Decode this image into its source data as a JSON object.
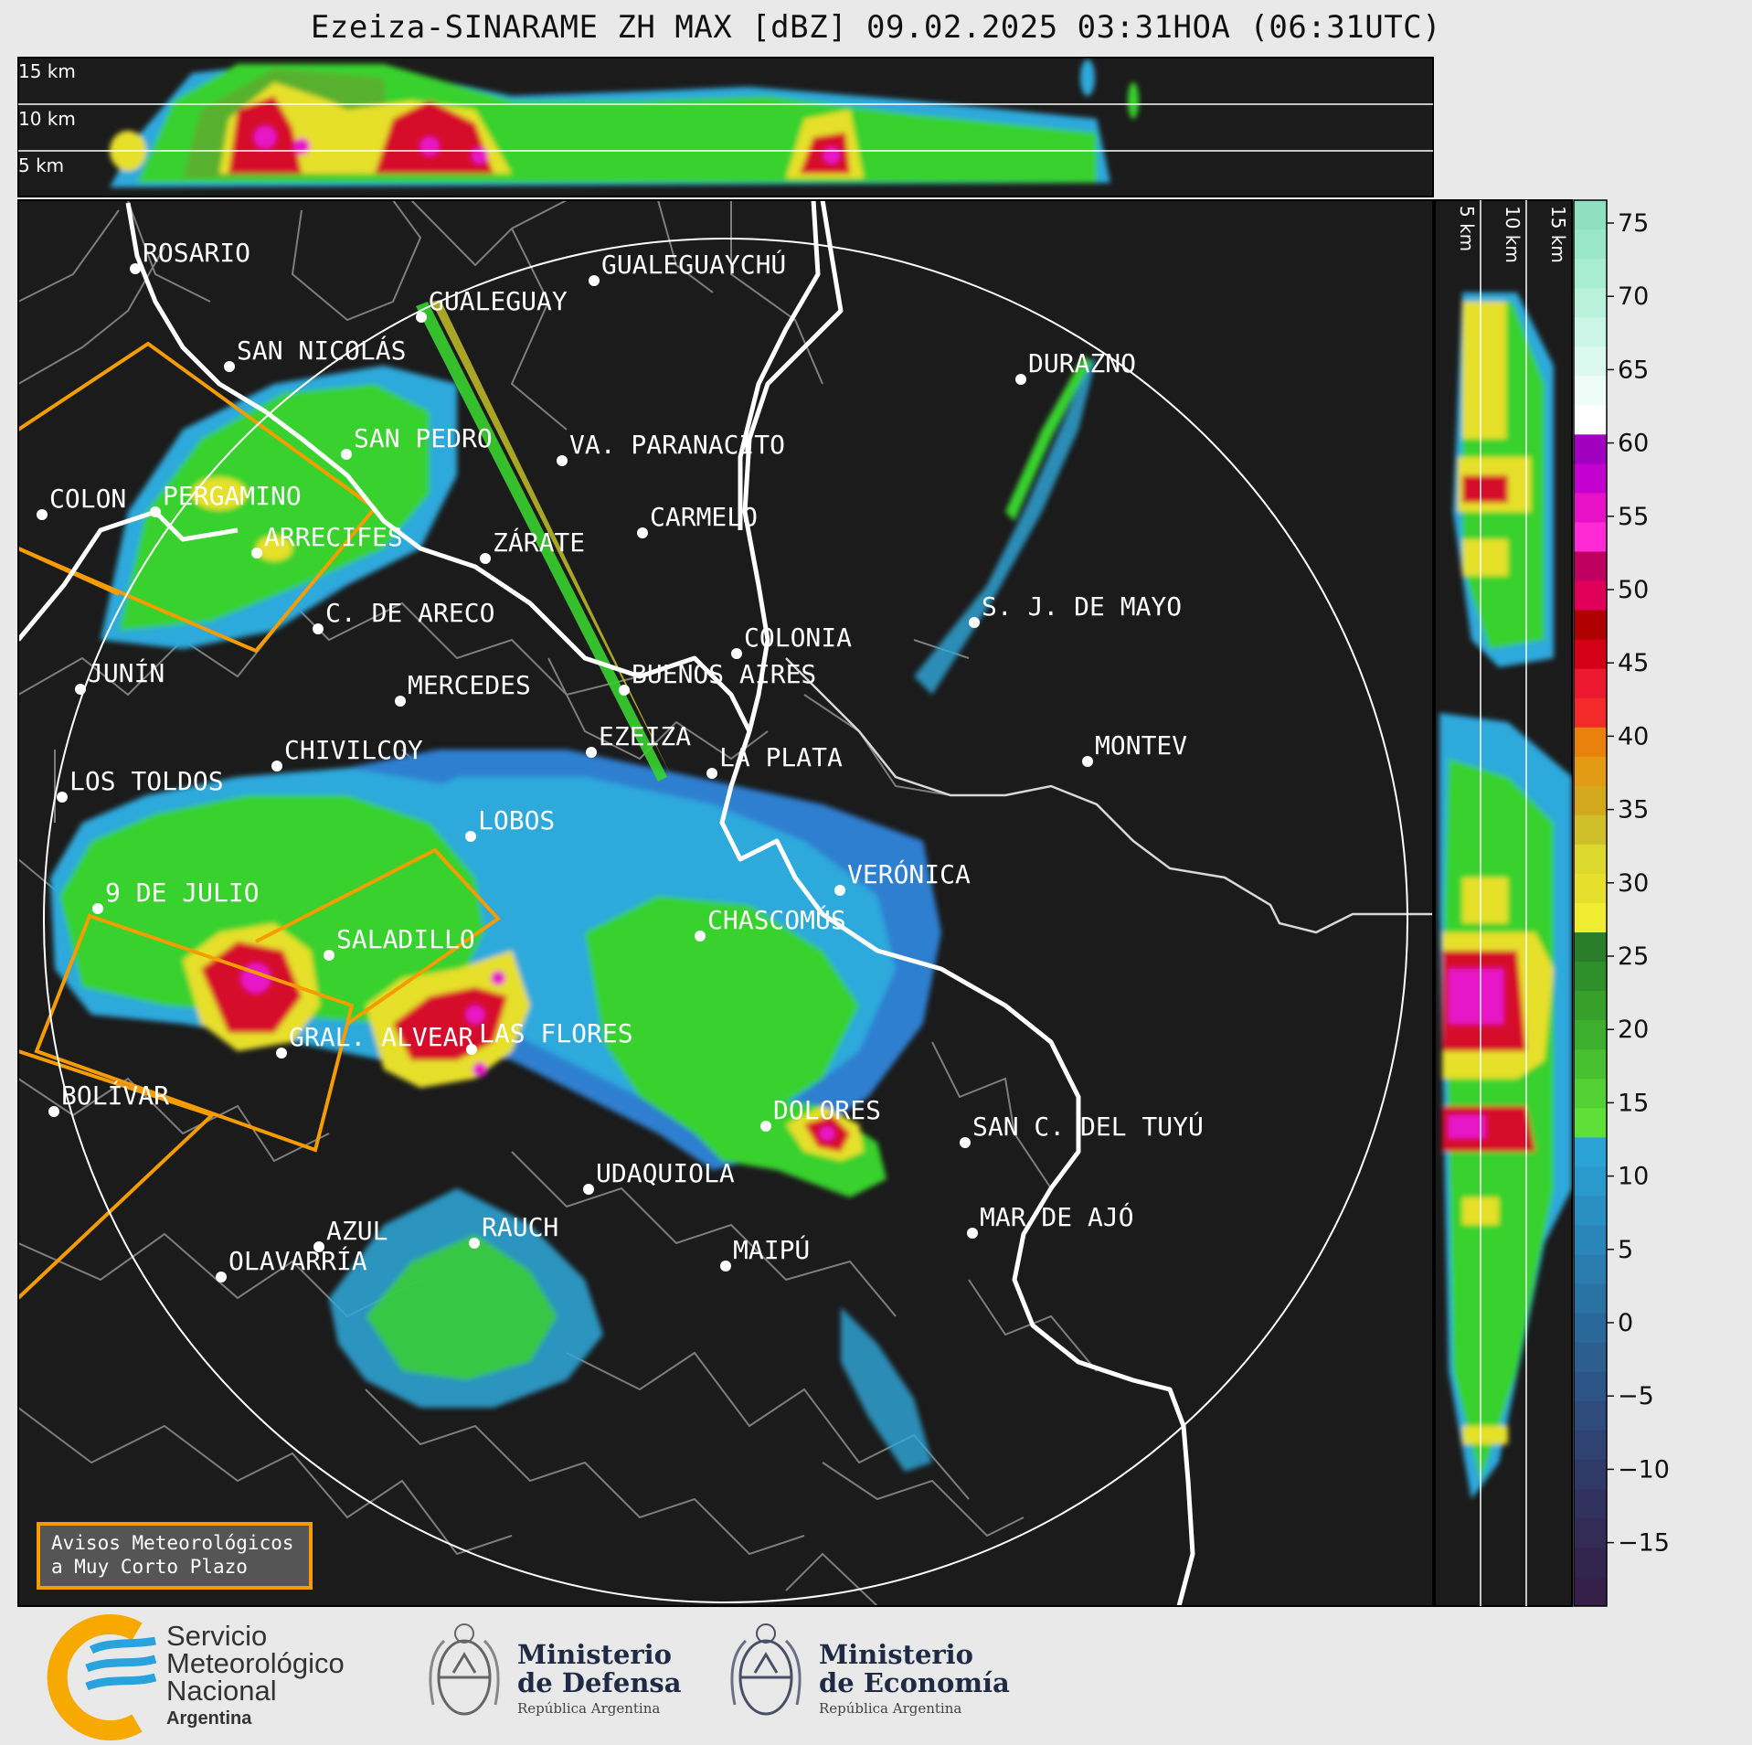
{
  "title": "Ezeiza-SINARAME ZH MAX [dBZ] 09.02.2025 03:31HOA (06:31UTC)",
  "height_labels_top": [
    "15 km",
    "10 km",
    "5 km"
  ],
  "height_labels_side": [
    "5 km",
    "10 km",
    "15 km"
  ],
  "colorbar": {
    "ticks": [
      "75",
      "70",
      "65",
      "60",
      "55",
      "50",
      "45",
      "40",
      "35",
      "30",
      "25",
      "20",
      "15",
      "10",
      "5",
      "0",
      "−5",
      "−10",
      "−15"
    ]
  },
  "cities": [
    {
      "name": "ROSARIO"
    },
    {
      "name": "GUALEGUAYCHÚ"
    },
    {
      "name": "GUALEGUAY"
    },
    {
      "name": "SAN NICOLÁS"
    },
    {
      "name": "DURAZNO"
    },
    {
      "name": "SAN PEDRO"
    },
    {
      "name": "VA. PARANACITO"
    },
    {
      "name": "COLON"
    },
    {
      "name": "PERGAMINO"
    },
    {
      "name": "CARMELO"
    },
    {
      "name": "ARRECIFES"
    },
    {
      "name": "ZÁRATE"
    },
    {
      "name": "S. J. DE MAYO"
    },
    {
      "name": "C. DE ARECO"
    },
    {
      "name": "COLONIA"
    },
    {
      "name": "JUNÍN"
    },
    {
      "name": "BUENOS AIRES"
    },
    {
      "name": "MERCEDES"
    },
    {
      "name": "EZEIZA"
    },
    {
      "name": "MONTEV"
    },
    {
      "name": "CHIVILCOY"
    },
    {
      "name": "LA PLATA"
    },
    {
      "name": "LOS TOLDOS"
    },
    {
      "name": "LOBOS"
    },
    {
      "name": "VERÓNICA"
    },
    {
      "name": "9 DE JULIO"
    },
    {
      "name": "CHASCOMÚS"
    },
    {
      "name": "SALADILLO"
    },
    {
      "name": "GRAL. ALVEAR"
    },
    {
      "name": "LAS FLORES"
    },
    {
      "name": "BOLÍVAR"
    },
    {
      "name": "DOLORES"
    },
    {
      "name": "SAN C. DEL TUYÚ"
    },
    {
      "name": "UDAQUIOLA"
    },
    {
      "name": "MAR DE AJÓ"
    },
    {
      "name": "AZUL"
    },
    {
      "name": "RAUCH"
    },
    {
      "name": "OLAVARRÍA"
    },
    {
      "name": "MAIPÚ"
    }
  ],
  "avisos_box": {
    "line1": "Avisos Meteorológicos",
    "line2": "a Muy Corto Plazo",
    "color": "#f59c00"
  },
  "logos": {
    "smn": {
      "line1": "Servicio",
      "line2": "Meteorológico",
      "line3": "Nacional",
      "line4": "Argentina"
    },
    "defensa": {
      "line1": "Ministerio",
      "line2": "de Defensa",
      "line3": "República Argentina"
    },
    "economia": {
      "line1": "Ministerio",
      "line2": "de Economía",
      "line3": "República Argentina"
    }
  },
  "colors": {
    "map_background": "#1b1b1b",
    "warning_polygon": "#f59c00",
    "range_ring": "#ffffff"
  }
}
